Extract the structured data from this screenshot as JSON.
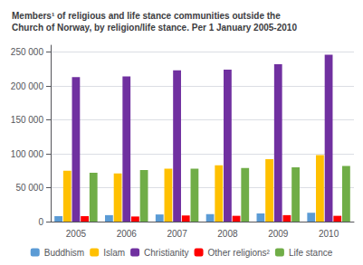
{
  "chart_data": {
    "type": "bar",
    "title": "Members¹ of religious and life stance communities outside the\nChurch of Norway, by religion/life stance. Per 1 January 2005-2010",
    "categories": [
      "2005",
      "2006",
      "2007",
      "2008",
      "2009",
      "2010"
    ],
    "series": [
      {
        "name": "Buddhism",
        "color": "#5b9bd5",
        "values": [
          8000,
          9500,
          10500,
          11000,
          12000,
          13000
        ]
      },
      {
        "name": "Islam",
        "color": "#ffc000",
        "values": [
          75000,
          71000,
          78000,
          83000,
          92000,
          98000
        ]
      },
      {
        "name": "Christianity",
        "color": "#7030a0",
        "values": [
          213000,
          214000,
          223000,
          224000,
          232000,
          246000
        ]
      },
      {
        "name": "Other religions²",
        "color": "#ff0000",
        "values": [
          8000,
          7500,
          9000,
          8500,
          9500,
          8500
        ]
      },
      {
        "name": "Life stance",
        "color": "#70ad47",
        "values": [
          72000,
          76000,
          78000,
          79000,
          80000,
          82000
        ]
      }
    ],
    "ylim": [
      0,
      260000
    ],
    "yticks": [
      0,
      {
        "value": 50000,
        "label": "50 000"
      },
      {
        "value": 100000,
        "label": "100 000"
      },
      {
        "value": 150000,
        "label": "150 000"
      },
      {
        "value": 200000,
        "label": "200 000"
      },
      {
        "value": 250000,
        "label": "250 000"
      }
    ],
    "grid": true,
    "legend": "bottom"
  }
}
